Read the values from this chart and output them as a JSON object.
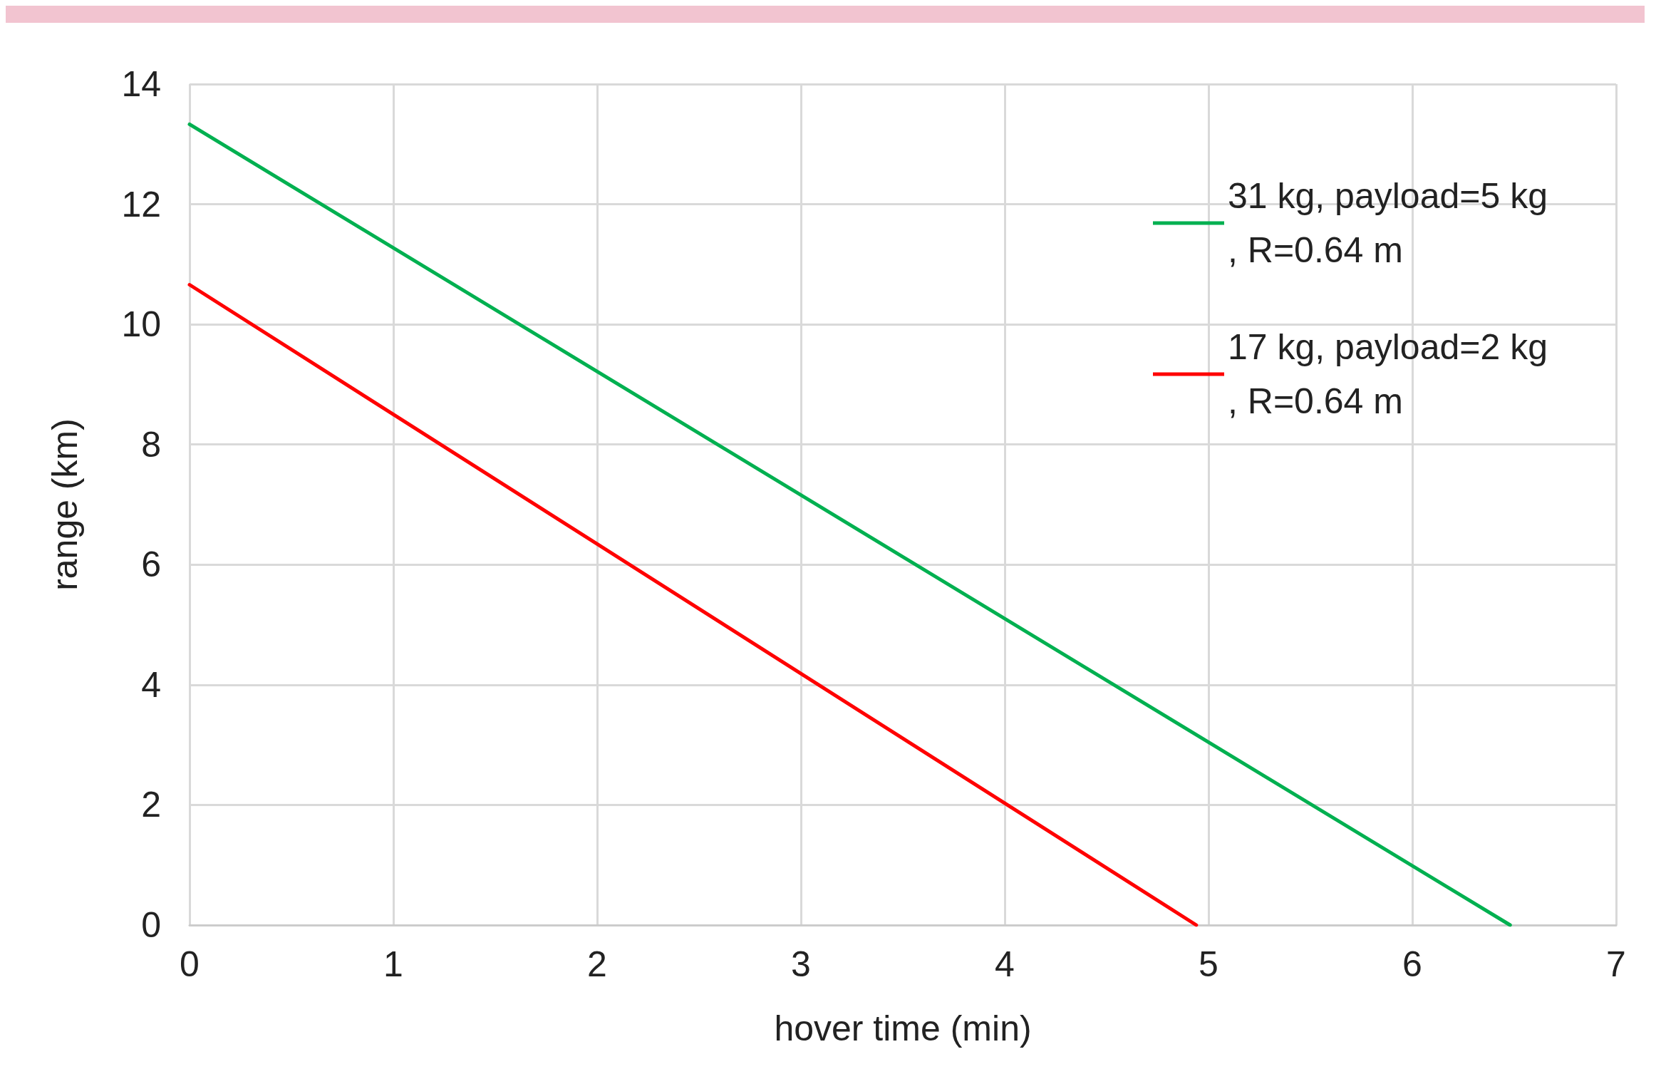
{
  "chart_data": {
    "type": "line",
    "xlabel": "hover time (min)",
    "ylabel": "range (km)",
    "xlim": [
      0,
      7
    ],
    "xticks": [
      0,
      1,
      2,
      3,
      4,
      5,
      6,
      7
    ],
    "ylim": [
      0,
      14
    ],
    "yticks": [
      0,
      2,
      4,
      6,
      8,
      10,
      12,
      14
    ],
    "grid": true,
    "legend": "top right",
    "marker": "none",
    "line_style": "solid",
    "series": [
      {
        "name": "31 kg, payload=5 kg, R=0.64 m",
        "color": "#00b050",
        "x": [
          0,
          6.48
        ],
        "values": [
          13.33,
          0
        ]
      },
      {
        "name": "17 kg, payload=2 kg, R=0.64 m",
        "color": "#ff0000",
        "x": [
          0,
          4.94
        ],
        "values": [
          10.66,
          0
        ]
      }
    ]
  }
}
